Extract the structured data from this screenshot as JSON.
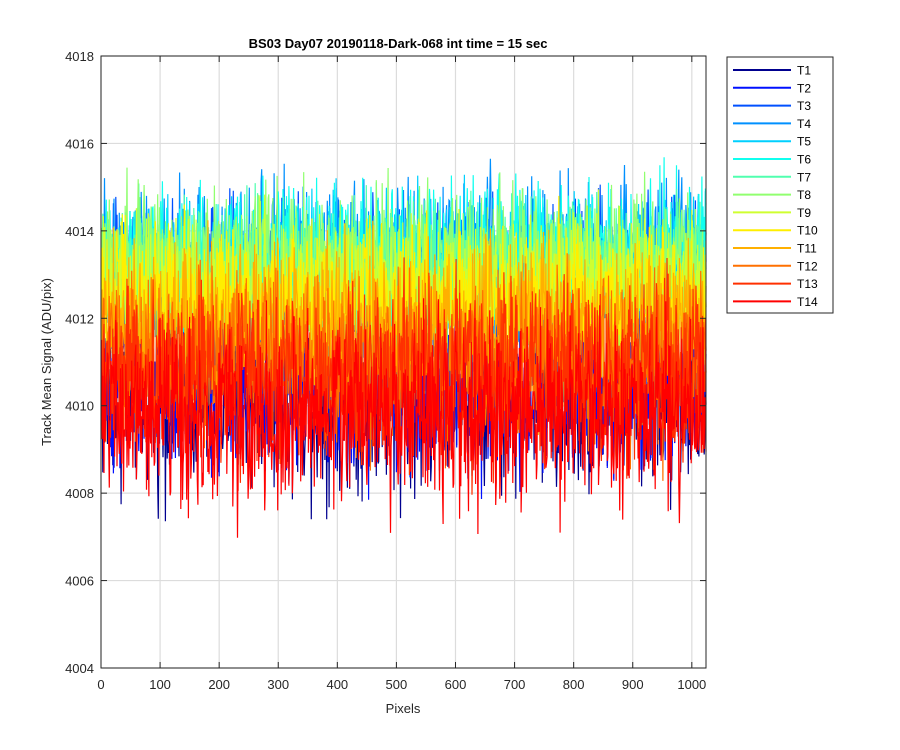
{
  "chart_data": {
    "type": "line",
    "title": "BS03 Day07 20190118-Dark-068 int time = 15 sec",
    "xlabel": "Pixels",
    "ylabel": "Track Mean Signal (ADU/pix)",
    "xlim": [
      0,
      1024
    ],
    "ylim": [
      4004,
      4018
    ],
    "xticks": [
      0,
      100,
      200,
      300,
      400,
      500,
      600,
      700,
      800,
      900,
      1000
    ],
    "yticks": [
      4004,
      4006,
      4008,
      4010,
      4012,
      4014,
      4016,
      4018
    ],
    "grid": true,
    "legend_position": "outside-top-right",
    "n_points": 1024,
    "series": [
      {
        "name": "T1",
        "color": "#00008F",
        "mean": 4010.2,
        "noise": 1.5
      },
      {
        "name": "T2",
        "color": "#0010FF",
        "mean": 4010.6,
        "noise": 1.5
      },
      {
        "name": "T3",
        "color": "#0050FF",
        "mean": 4012.8,
        "noise": 1.3
      },
      {
        "name": "T4",
        "color": "#0090FF",
        "mean": 4013.3,
        "noise": 1.3
      },
      {
        "name": "T5",
        "color": "#00D0FF",
        "mean": 4013.0,
        "noise": 1.2
      },
      {
        "name": "T6",
        "color": "#10FFEF",
        "mean": 4013.4,
        "noise": 1.2
      },
      {
        "name": "T7",
        "color": "#50FFAF",
        "mean": 4013.0,
        "noise": 1.2
      },
      {
        "name": "T8",
        "color": "#90FF6F",
        "mean": 4013.2,
        "noise": 1.2
      },
      {
        "name": "T9",
        "color": "#CFFF30",
        "mean": 4012.6,
        "noise": 1.2
      },
      {
        "name": "T10",
        "color": "#FFEF00",
        "mean": 4012.3,
        "noise": 1.3
      },
      {
        "name": "T11",
        "color": "#FFB000",
        "mean": 4011.8,
        "noise": 1.3
      },
      {
        "name": "T12",
        "color": "#FF7000",
        "mean": 4011.0,
        "noise": 1.4
      },
      {
        "name": "T13",
        "color": "#FF3000",
        "mean": 4010.8,
        "noise": 1.4
      },
      {
        "name": "T14",
        "color": "#FF0000",
        "mean": 4009.8,
        "noise": 1.5
      }
    ]
  }
}
